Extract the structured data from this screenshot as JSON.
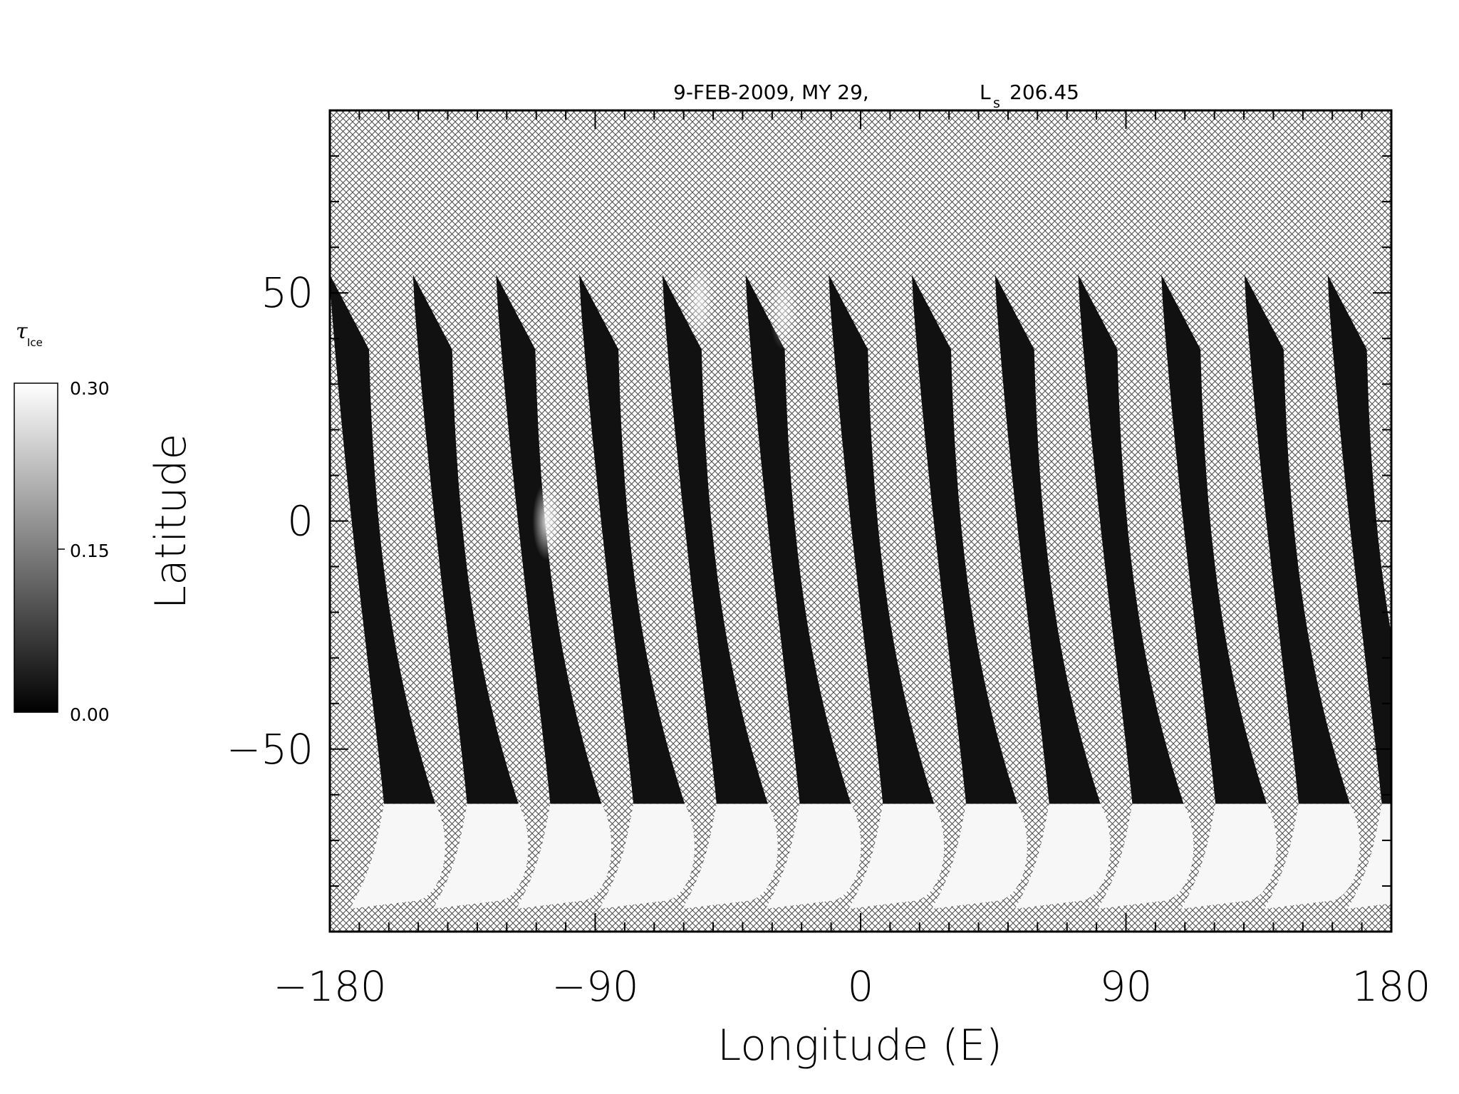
{
  "chart_data": {
    "type": "heatmap",
    "title": {
      "date": "9-FEB-2009, MY 29,",
      "ls_symbol": "L",
      "ls_subscript": "s",
      "ls_value": "206.45"
    },
    "xlabel": "Longitude (E)",
    "ylabel": "Latitude",
    "xlim": [
      -180,
      180
    ],
    "ylim": [
      -90,
      90
    ],
    "x_ticks": [
      "−180",
      "−90",
      "0",
      "90",
      "180"
    ],
    "x_tick_values": [
      -180,
      -90,
      0,
      90,
      180
    ],
    "y_ticks": [
      "50",
      "0",
      "−50"
    ],
    "y_tick_values": [
      50,
      0,
      -50
    ],
    "x_minor_step": 10,
    "y_minor_step": 10,
    "missing_data_fill": "crosshatch",
    "colormap": "grayscale",
    "colorbar": {
      "label": "τ",
      "label_subscript": "Ice",
      "min": 0.0,
      "max": 0.3,
      "ticks": [
        "0.30",
        "0.15",
        "0.00"
      ],
      "tick_values": [
        0.3,
        0.15,
        0.0
      ]
    },
    "swaths": {
      "count": 14,
      "first_top_longitude": -180,
      "spacing_longitude": 28.2,
      "top_latitude": 54,
      "cap_latitude": -62,
      "bottom_latitude": -85,
      "typical_tau_ice": 0.02,
      "polar_cap_tau_ice": 0.29,
      "bright_features": [
        {
          "swath": 2,
          "lat": 0,
          "tau": 0.27
        },
        {
          "swath": 4,
          "lat": 48,
          "tau": 0.22
        },
        {
          "swath": 5,
          "lat": 46,
          "tau": 0.18
        }
      ]
    }
  }
}
